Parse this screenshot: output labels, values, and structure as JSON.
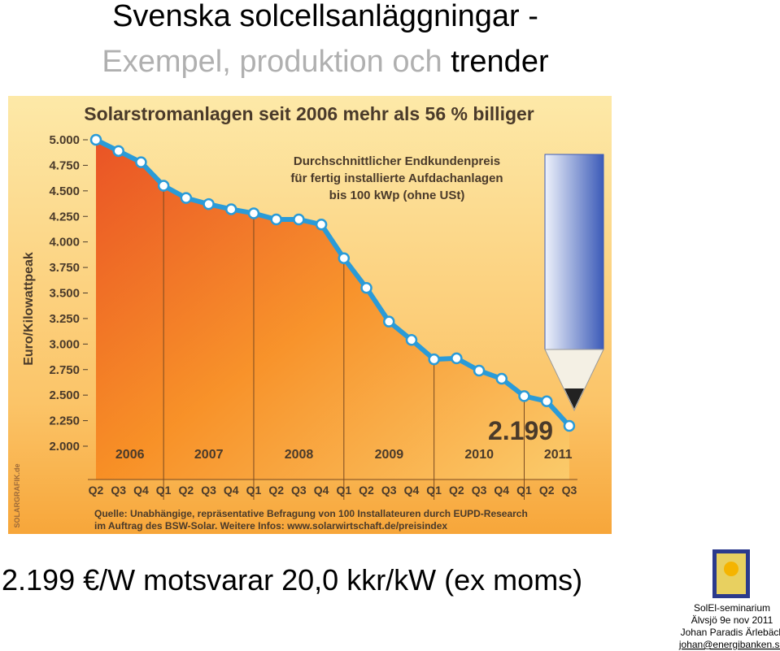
{
  "slide": {
    "title_line1": "Svenska solcellsanläggningar -",
    "title_line2_grey": "Exempel, produktion och",
    "title_line2_black": "trender",
    "caption": "2.199 €/W motsvarar 20,0 kkr/kW (ex moms)",
    "footer": [
      "SolEl-seminarium",
      "Älvsjö 9e nov 2011",
      "Johan Paradis Ärlebäck",
      "johan@energibanken.se"
    ]
  },
  "chart_data": {
    "type": "line",
    "title": "Solarstromanlagen seit 2006 mehr als 56 % billiger",
    "subtitle": [
      "Durchschnittlicher Endkundenpreis",
      "für fertig installierte Aufdachanlagen",
      "bis 100 kWp (ohne USt)"
    ],
    "y_label": "Euro/Kilowattpeak",
    "annotation": "2.199",
    "year_labels": [
      "2006",
      "2007",
      "2008",
      "2009",
      "2010",
      "2011"
    ],
    "categories": [
      "Q2",
      "Q3",
      "Q4",
      "Q1",
      "Q2",
      "Q3",
      "Q4",
      "Q1",
      "Q2",
      "Q3",
      "Q4",
      "Q1",
      "Q2",
      "Q3",
      "Q4",
      "Q1",
      "Q2",
      "Q3",
      "Q4",
      "Q1",
      "Q2",
      "Q3"
    ],
    "values": [
      5.0,
      4.89,
      4.78,
      4.55,
      4.43,
      4.37,
      4.32,
      4.28,
      4.22,
      4.22,
      4.17,
      3.84,
      3.55,
      3.22,
      3.04,
      2.85,
      2.86,
      2.74,
      2.66,
      2.49,
      2.44,
      2.199
    ],
    "color": "#2a9bd8",
    "ylim": [
      2,
      5
    ],
    "yticks": [
      {
        "value": 2,
        "label": "2.000"
      },
      {
        "value": 2.25,
        "label": "2.250"
      },
      {
        "value": 2.5,
        "label": "2.500"
      },
      {
        "value": 2.75,
        "label": "2.750"
      },
      {
        "value": 3,
        "label": "3.000"
      },
      {
        "value": 3.25,
        "label": "3.250"
      },
      {
        "value": 3.5,
        "label": "3.500"
      },
      {
        "value": 3.75,
        "label": "3.750"
      },
      {
        "value": 4,
        "label": "4.000"
      },
      {
        "value": 4.25,
        "label": "4.250"
      },
      {
        "value": 4.5,
        "label": "4.500"
      },
      {
        "value": 4.75,
        "label": "4.750"
      },
      {
        "value": 5,
        "label": "5.000"
      }
    ],
    "source": [
      "Quelle: Unabhängige, repräsentative Befragung von 100 Installateuren durch EUPD-Research",
      "im Auftrag des BSW-Solar. Weitere Infos: www.solarwirtschaft.de/preisindex"
    ],
    "credit": "SOLARGRAFIK.de"
  }
}
